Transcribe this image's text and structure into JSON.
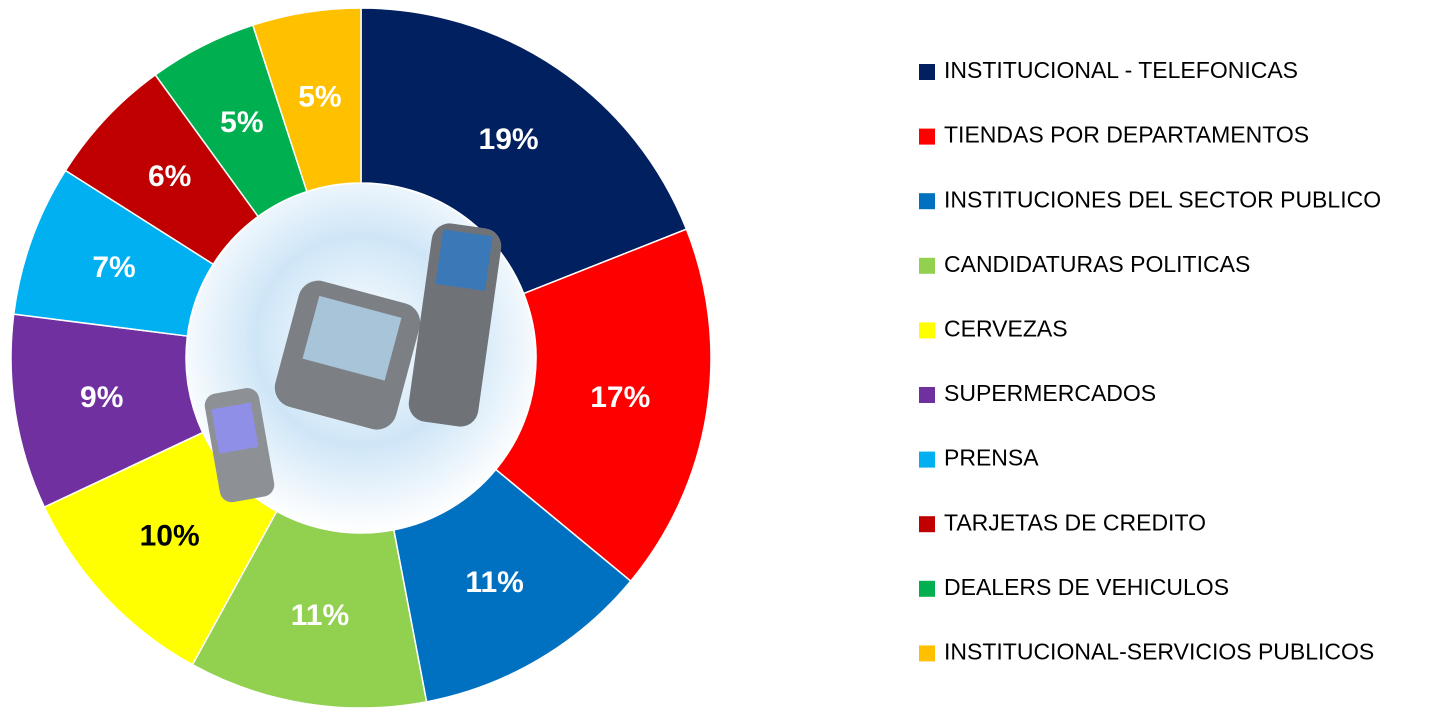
{
  "chart_data": {
    "type": "pie",
    "categories": [
      "INSTITUCIONAL - TELEFONICAS",
      "TIENDAS POR DEPARTAMENTOS",
      "INSTITUCIONES DEL SECTOR PUBLICO",
      "CANDIDATURAS POLITICAS",
      "CERVEZAS",
      "SUPERMERCADOS",
      "PRENSA",
      "TARJETAS DE CREDITO",
      "DEALERS DE VEHICULOS",
      "INSTITUCIONAL-SERVICIOS PUBLICOS"
    ],
    "values": [
      19,
      17,
      11,
      11,
      10,
      9,
      7,
      6,
      5,
      5
    ],
    "value_labels": [
      "19%",
      "17%",
      "11%",
      "11%",
      "10%",
      "9%",
      "7%",
      "6%",
      "5%",
      "5%"
    ],
    "colors": [
      "#002060",
      "#FF0000",
      "#0070C0",
      "#92D050",
      "#FFFF00",
      "#7030A0",
      "#00B0F0",
      "#C00000",
      "#00B050",
      "#FFC000"
    ]
  }
}
